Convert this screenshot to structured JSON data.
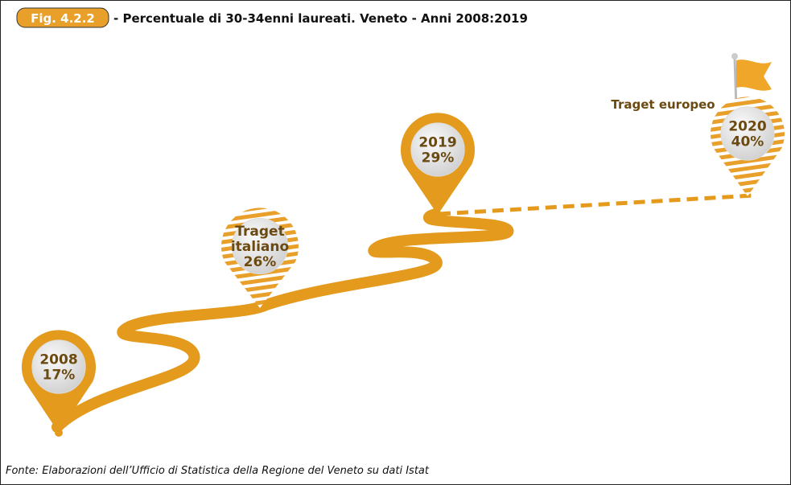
{
  "header": {
    "label": "Fig. 4.2.2",
    "title": "- Percentuale di 30-34enni laureati. Veneto - Anni 2008:2019"
  },
  "markers": [
    {
      "lines": [
        "2008",
        "17%"
      ]
    },
    {
      "lines": [
        "Traget",
        "italiano",
        "26%"
      ]
    },
    {
      "lines": [
        "2019",
        "29%"
      ]
    },
    {
      "lines": [
        "2020",
        "40%"
      ]
    }
  ],
  "annotation": "Traget europeo",
  "footer": "Fonte: Elaborazioni dell’Ufficio di Statistica della Regione del Veneto su dati Istat"
}
